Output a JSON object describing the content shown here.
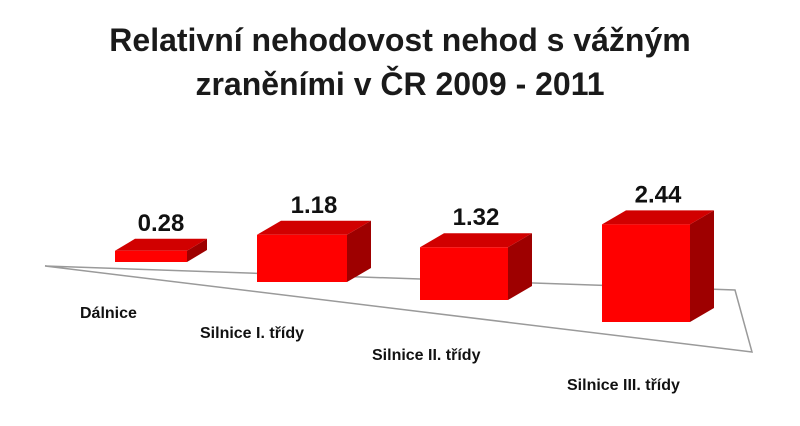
{
  "chart_data": {
    "type": "bar",
    "style": "3d-perspective",
    "title_lines": [
      "Relativní nehodovost nehod s vážným",
      "zraněními v ČR 2009 - 2011"
    ],
    "categories": [
      "Dálnice",
      "Silnice I. třídy",
      "Silnice II. třídy",
      "Silnice III. třídy"
    ],
    "values": [
      0.28,
      1.18,
      1.32,
      2.44
    ],
    "value_labels": [
      "0.28",
      "1.18",
      "1.32",
      "2.44"
    ],
    "bar_color": "#ff0000",
    "grid": false,
    "legend": "none"
  }
}
